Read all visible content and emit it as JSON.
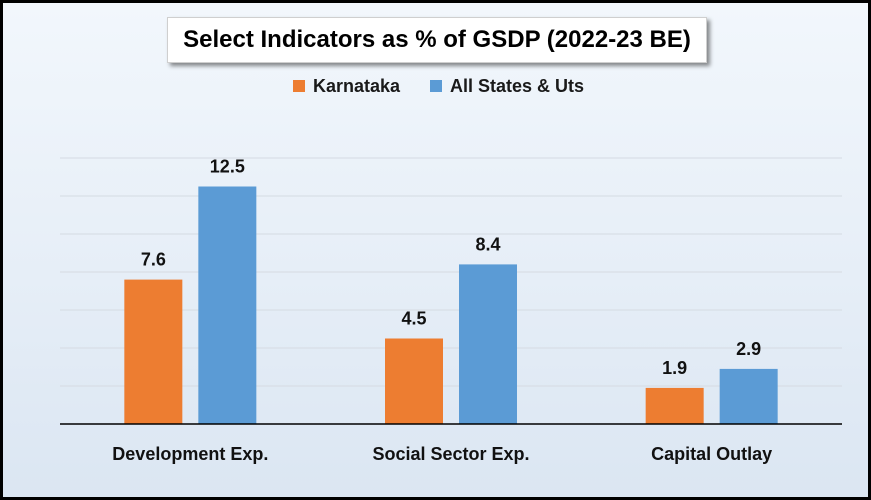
{
  "chart_data": {
    "type": "bar",
    "title": "Select Indicators as % of GSDP (2022-23 BE)",
    "xlabel": "",
    "ylabel": "",
    "ylim": [
      0,
      14
    ],
    "grid": true,
    "legend_position": "top",
    "categories": [
      "Development Exp.",
      "Social Sector Exp.",
      "Capital Outlay"
    ],
    "series": [
      {
        "name": "Karnataka",
        "color": "#ed7d31",
        "values": [
          7.6,
          4.5,
          1.9
        ],
        "labels": [
          "7.6",
          "4.5",
          "1.9"
        ]
      },
      {
        "name": "All States & Uts",
        "color": "#5b9bd5",
        "values": [
          12.5,
          8.4,
          2.9
        ],
        "labels": [
          "12.5",
          "8.4",
          "2.9"
        ]
      }
    ]
  }
}
